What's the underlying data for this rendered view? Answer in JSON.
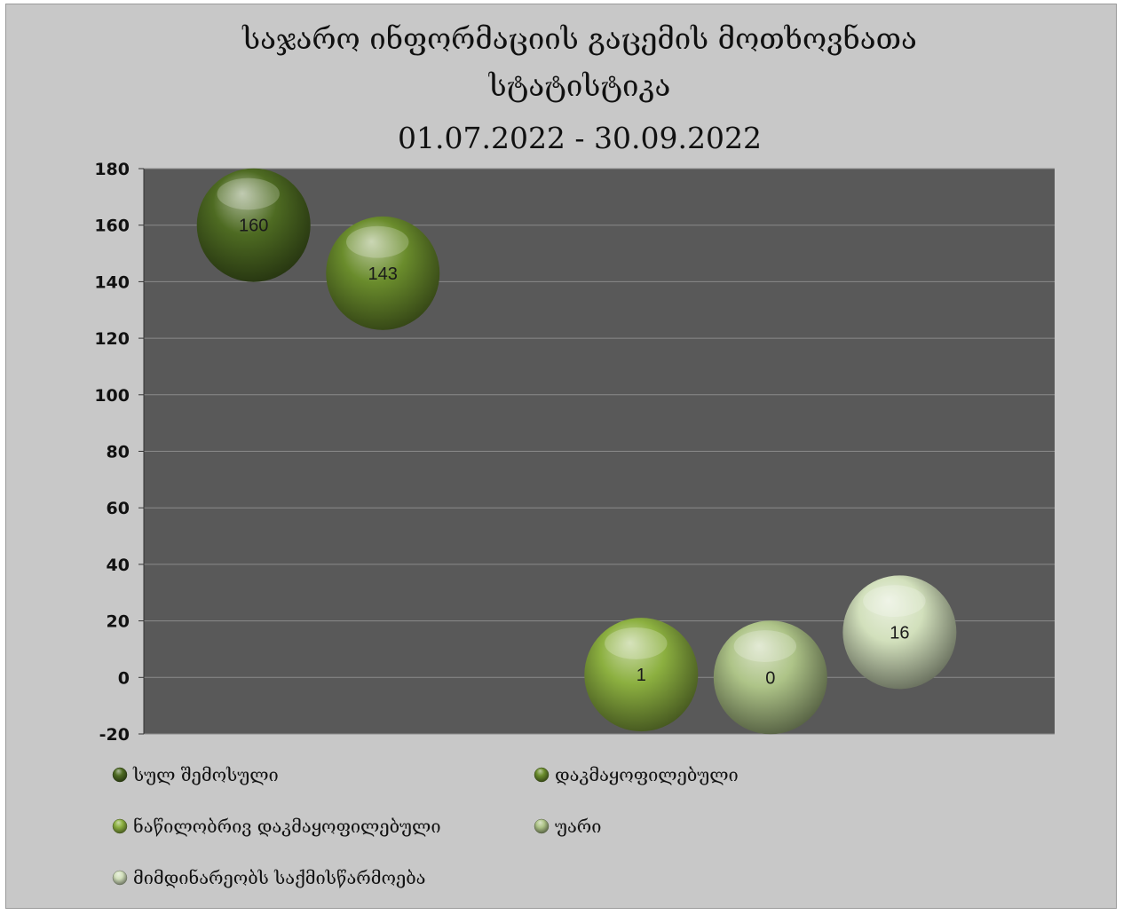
{
  "chart_data": {
    "type": "scatter",
    "title": [
      "საჯარო ინფორმაციის გაცემის მოთხოვნათა",
      "სტატისტიკა",
      "01.07.2022 - 30.09.2022"
    ],
    "xlabel": "",
    "ylabel": "",
    "ylim": [
      -20,
      180
    ],
    "yticks": [
      180,
      160,
      140,
      120,
      100,
      80,
      60,
      40,
      20,
      0,
      -20
    ],
    "grid": true,
    "legend_position": "bottom",
    "series": [
      {
        "name": "სულ შემოსული",
        "x": 1,
        "value": 160,
        "label": "160",
        "color": "#4e6b22"
      },
      {
        "name": "დაკმაყოფილებული",
        "x": 2,
        "value": 143,
        "label": "143",
        "color": "#6a8c2c"
      },
      {
        "name": "ნაწილობრივ დაკმაყოფილებული",
        "x": 4,
        "value": 1,
        "label": "1",
        "color": "#8cb040"
      },
      {
        "name": "უარი",
        "x": 5,
        "value": 0,
        "label": "0",
        "color": "#aec488"
      },
      {
        "name": "მიმდინარეობს საქმისწარმოება",
        "x": 6,
        "value": 16,
        "label": "16",
        "color": "#d2e0bc"
      }
    ]
  }
}
